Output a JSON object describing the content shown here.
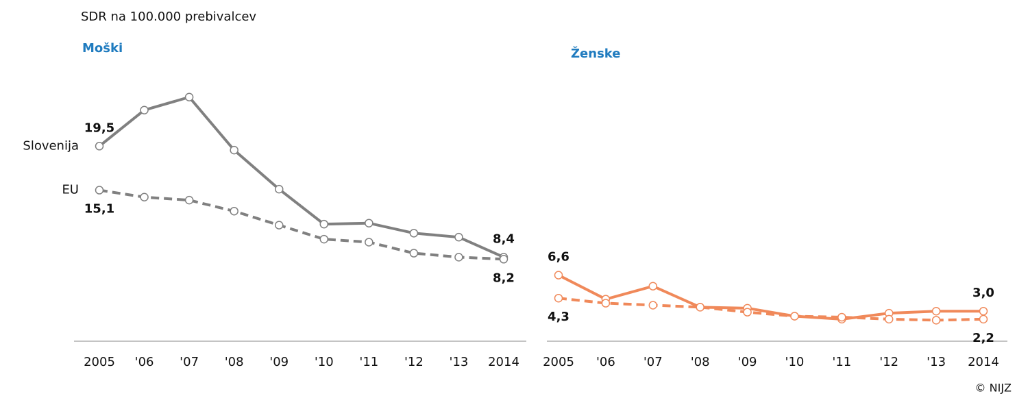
{
  "unit_label": "SDR na 100.000  prebivalcev",
  "copyright": "© NIJZ",
  "chart_data": [
    {
      "type": "line",
      "title": "Moški",
      "categories": [
        "2005",
        "'06",
        "'07",
        "'08",
        "'09",
        "'10",
        "'11",
        "'12",
        "'13",
        "2014"
      ],
      "ylim": [
        0,
        25
      ],
      "series": [
        {
          "name": "Slovenija",
          "color": "#808080",
          "dashed": false,
          "values": [
            19.5,
            23.1,
            24.4,
            19.1,
            15.2,
            11.7,
            11.8,
            10.8,
            10.4,
            8.4
          ],
          "value_labels": [
            "19,5",
            null,
            null,
            null,
            null,
            null,
            null,
            null,
            null,
            "8,4"
          ]
        },
        {
          "name": "EU",
          "color": "#808080",
          "dashed": true,
          "values": [
            15.1,
            14.4,
            14.1,
            13.0,
            11.6,
            10.2,
            9.9,
            8.8,
            8.4,
            8.2
          ],
          "value_labels": [
            "15,1",
            null,
            null,
            null,
            null,
            null,
            null,
            null,
            null,
            "8,2"
          ]
        }
      ]
    },
    {
      "type": "line",
      "title": "Ženske",
      "categories": [
        "2005",
        "'06",
        "'07",
        "'08",
        "'09",
        "'10",
        "'11",
        "'12",
        "'13",
        "2014"
      ],
      "ylim": [
        0,
        25
      ],
      "series": [
        {
          "color": "#f0895a",
          "dashed": false,
          "values": [
            6.6,
            4.2,
            5.5,
            3.4,
            3.3,
            2.5,
            2.2,
            2.8,
            3.0,
            3.0
          ],
          "value_labels": [
            "6,6",
            null,
            null,
            null,
            null,
            null,
            null,
            null,
            null,
            "3,0"
          ]
        },
        {
          "color": "#f0895a",
          "dashed": true,
          "values": [
            4.3,
            3.8,
            3.6,
            3.4,
            2.9,
            2.5,
            2.4,
            2.2,
            2.1,
            2.2
          ],
          "value_labels": [
            "4,3",
            null,
            null,
            null,
            null,
            null,
            null,
            null,
            null,
            "2,2"
          ]
        }
      ]
    }
  ]
}
